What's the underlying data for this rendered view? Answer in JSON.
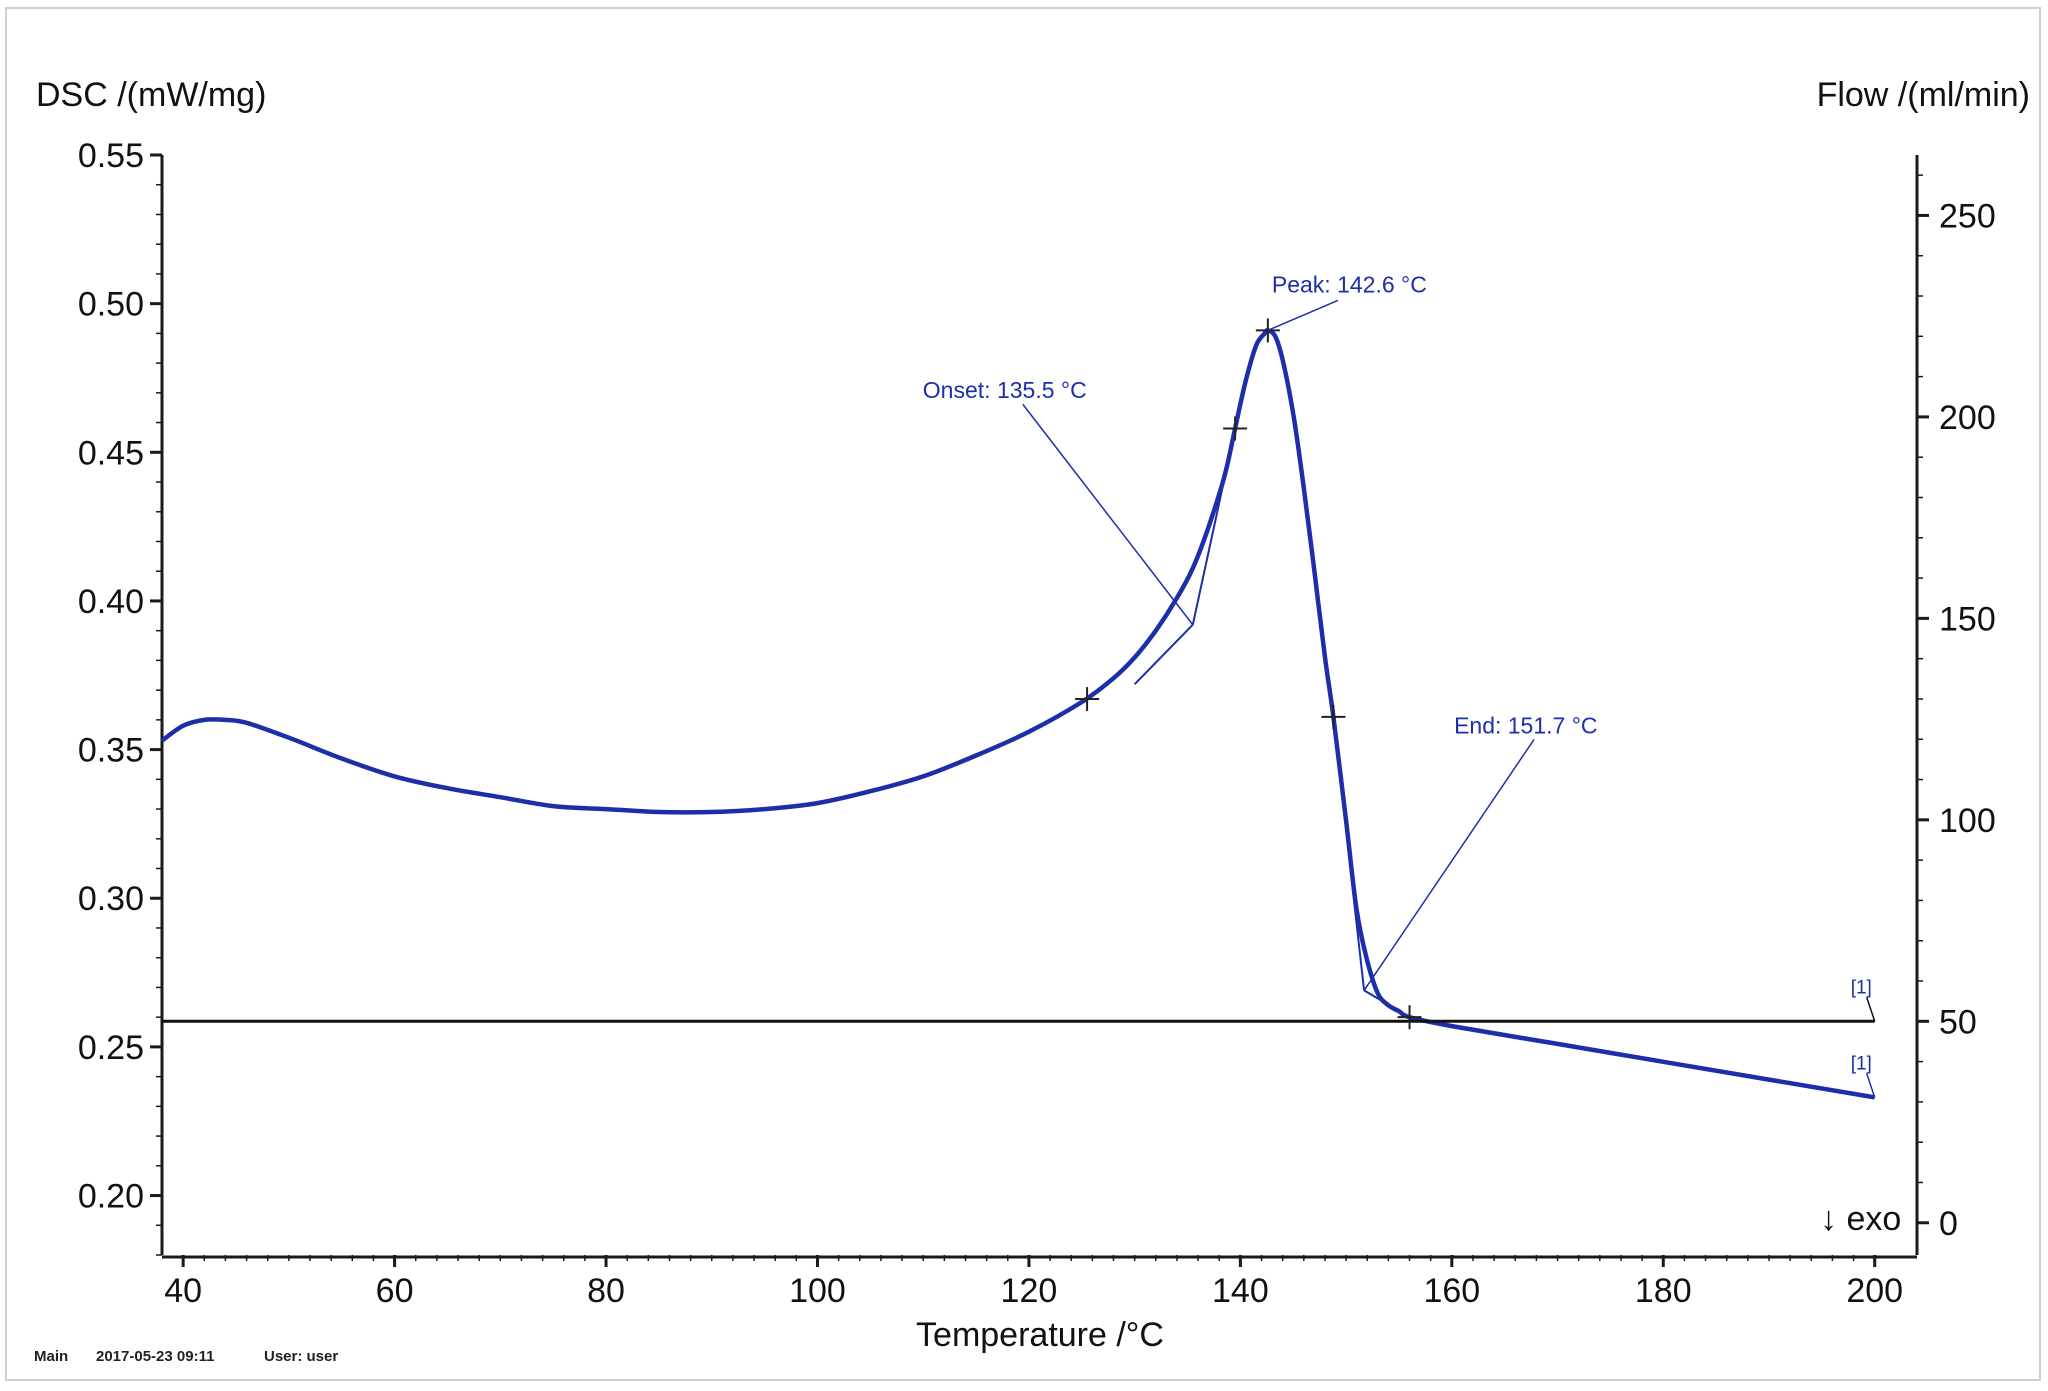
{
  "chart_data": {
    "type": "line",
    "title": "",
    "xlabel": "Temperature /°C",
    "ylabel": "DSC /(mW/mg)",
    "y2label": "Flow /(ml/min)",
    "xlim": [
      38,
      204
    ],
    "ylim": [
      0.18,
      0.55
    ],
    "y2lim": [
      -8,
      265
    ],
    "x_ticks": [
      40,
      60,
      80,
      100,
      120,
      140,
      160,
      180,
      200
    ],
    "y_ticks": [
      0.2,
      0.25,
      0.3,
      0.35,
      0.4,
      0.45,
      0.5,
      0.55
    ],
    "y2_ticks": [
      0,
      50,
      100,
      150,
      200,
      250
    ],
    "grid": false,
    "exo_label": "↓ exo",
    "series": [
      {
        "name": "",
        "axis": "left",
        "color": "#1c2fa8",
        "tag": "[1]",
        "x": [
          38,
          40,
          42,
          44,
          46,
          50,
          55,
          60,
          65,
          70,
          75,
          80,
          85,
          90,
          95,
          100,
          105,
          110,
          115,
          120,
          125,
          128,
          130,
          132,
          134,
          135.5,
          137,
          138.5,
          139.5,
          140.5,
          141.5,
          142.3,
          142.6,
          143.3,
          144,
          145,
          146,
          147,
          148,
          148.8,
          150,
          151,
          152,
          153,
          154,
          155,
          156,
          160,
          170,
          180,
          190,
          200
        ],
        "y": [
          0.353,
          0.358,
          0.36,
          0.36,
          0.359,
          0.354,
          0.347,
          0.341,
          0.337,
          0.334,
          0.331,
          0.33,
          0.329,
          0.329,
          0.33,
          0.332,
          0.336,
          0.341,
          0.348,
          0.356,
          0.366,
          0.374,
          0.381,
          0.39,
          0.401,
          0.411,
          0.425,
          0.442,
          0.458,
          0.474,
          0.486,
          0.49,
          0.491,
          0.489,
          0.481,
          0.463,
          0.438,
          0.41,
          0.381,
          0.361,
          0.326,
          0.296,
          0.279,
          0.268,
          0.264,
          0.262,
          0.26,
          0.257,
          0.251,
          0.245,
          0.239,
          0.233
        ]
      },
      {
        "name": "",
        "axis": "right",
        "color": "#111111",
        "tag": "[1]",
        "x": [
          38,
          200
        ],
        "y": [
          50,
          50
        ]
      }
    ],
    "annotations": [
      {
        "label": "Onset: 135.5 °C",
        "x": 135.5,
        "y": 0.411
      },
      {
        "label": "Peak: 142.6 °C",
        "x": 142.6,
        "y": 0.491
      },
      {
        "label": "End: 151.7 °C",
        "x": 151.7,
        "y": 0.27
      }
    ],
    "markers": [
      {
        "x": 125.5,
        "y": 0.367
      },
      {
        "x": 139.5,
        "y": 0.458
      },
      {
        "x": 142.6,
        "y": 0.491
      },
      {
        "x": 148.8,
        "y": 0.361
      },
      {
        "x": 156.0,
        "y": 0.26
      }
    ],
    "tangent_lines": [
      {
        "x": [
          135.5,
          130.0
        ],
        "y": [
          0.392,
          0.372
        ]
      },
      {
        "x": [
          135.5,
          140.5
        ],
        "y": [
          0.392,
          0.474
        ]
      },
      {
        "x": [
          151.7,
          148.8
        ],
        "y": [
          0.269,
          0.361
        ]
      },
      {
        "x": [
          151.7,
          156.0
        ],
        "y": [
          0.269,
          0.26
        ]
      }
    ]
  },
  "footer": {
    "module": "Main",
    "datetime": "2017-05-23 09:11",
    "user": "User: user"
  }
}
